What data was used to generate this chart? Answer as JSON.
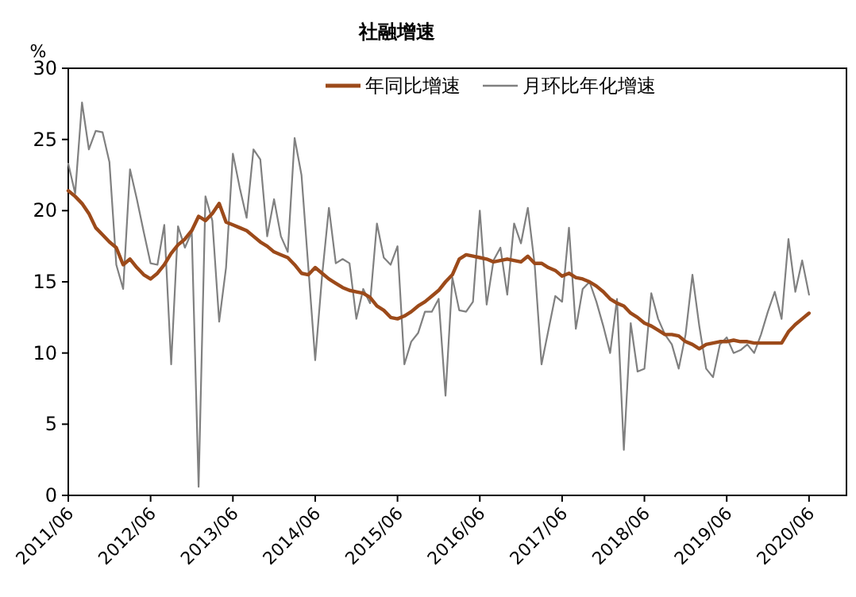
{
  "chart_data": {
    "type": "line",
    "title": "社融增速",
    "ylabel": "%",
    "legend": "top",
    "xlim": [
      "2011-06",
      "2020-11-15"
    ],
    "ylim": [
      0,
      30
    ],
    "yticks": [
      0,
      5,
      10,
      15,
      20,
      25,
      30
    ],
    "xticks": [
      {
        "value": "2011-06",
        "label": "2011/06"
      },
      {
        "value": "2012-06",
        "label": "2012/06"
      },
      {
        "value": "2013-06",
        "label": "2013/06"
      },
      {
        "value": "2014-06",
        "label": "2014/06"
      },
      {
        "value": "2015-06",
        "label": "2015/06"
      },
      {
        "value": "2016-06",
        "label": "2016/06"
      },
      {
        "value": "2017-06",
        "label": "2017/06"
      },
      {
        "value": "2018-06",
        "label": "2018/06"
      },
      {
        "value": "2019-06",
        "label": "2019/06"
      },
      {
        "value": "2020-06",
        "label": "2020/06"
      }
    ],
    "x": [
      "2011-06",
      "2011-07",
      "2011-08",
      "2011-09",
      "2011-10",
      "2011-11",
      "2011-12",
      "2012-01",
      "2012-02",
      "2012-03",
      "2012-04",
      "2012-05",
      "2012-06",
      "2012-07",
      "2012-08",
      "2012-09",
      "2012-10",
      "2012-11",
      "2012-12",
      "2013-01",
      "2013-02",
      "2013-03",
      "2013-04",
      "2013-05",
      "2013-06",
      "2013-07",
      "2013-08",
      "2013-09",
      "2013-10",
      "2013-11",
      "2013-12",
      "2014-01",
      "2014-02",
      "2014-03",
      "2014-04",
      "2014-05",
      "2014-06",
      "2014-07",
      "2014-08",
      "2014-09",
      "2014-10",
      "2014-11",
      "2014-12",
      "2015-01",
      "2015-02",
      "2015-03",
      "2015-04",
      "2015-05",
      "2015-06",
      "2015-07",
      "2015-08",
      "2015-09",
      "2015-10",
      "2015-11",
      "2015-12",
      "2016-01",
      "2016-02",
      "2016-03",
      "2016-04",
      "2016-05",
      "2016-06",
      "2016-07",
      "2016-08",
      "2016-09",
      "2016-10",
      "2016-11",
      "2016-12",
      "2017-01",
      "2017-02",
      "2017-03",
      "2017-04",
      "2017-05",
      "2017-06",
      "2017-07",
      "2017-08",
      "2017-09",
      "2017-10",
      "2017-11",
      "2017-12",
      "2018-01",
      "2018-02",
      "2018-03",
      "2018-04",
      "2018-05",
      "2018-06",
      "2018-07",
      "2018-08",
      "2018-09",
      "2018-10",
      "2018-11",
      "2018-12",
      "2019-01",
      "2019-02",
      "2019-03",
      "2019-04",
      "2019-05",
      "2019-06",
      "2019-07",
      "2019-08",
      "2019-09",
      "2019-10",
      "2019-11",
      "2019-12",
      "2020-01",
      "2020-02",
      "2020-03",
      "2020-04",
      "2020-05",
      "2020-06"
    ],
    "series": [
      {
        "name": "年同比增速",
        "color": "#9c4a1a",
        "values": [
          21.4,
          21.0,
          20.5,
          19.8,
          18.8,
          18.3,
          17.8,
          17.4,
          16.2,
          16.6,
          16.0,
          15.5,
          15.2,
          15.6,
          16.2,
          17.0,
          17.6,
          18.0,
          18.6,
          19.6,
          19.3,
          19.8,
          20.5,
          19.2,
          19.0,
          18.8,
          18.6,
          18.2,
          17.8,
          17.5,
          17.1,
          16.9,
          16.7,
          16.2,
          15.6,
          15.5,
          16.0,
          15.6,
          15.2,
          14.9,
          14.6,
          14.4,
          14.3,
          14.2,
          13.9,
          13.3,
          13.0,
          12.5,
          12.4,
          12.6,
          12.9,
          13.3,
          13.6,
          14.0,
          14.4,
          15.0,
          15.5,
          16.6,
          16.9,
          16.8,
          16.7,
          16.6,
          16.4,
          16.5,
          16.6,
          16.5,
          16.4,
          16.8,
          16.3,
          16.3,
          16.0,
          15.8,
          15.4,
          15.6,
          15.3,
          15.2,
          15.0,
          14.7,
          14.3,
          13.8,
          13.5,
          13.3,
          12.8,
          12.5,
          12.1,
          11.9,
          11.6,
          11.3,
          11.3,
          11.2,
          10.8,
          10.6,
          10.3,
          10.6,
          10.7,
          10.8,
          10.8,
          10.9,
          10.8,
          10.8,
          10.7,
          10.7,
          10.7,
          10.7,
          10.7,
          11.5,
          12.0,
          12.4,
          12.8
        ]
      },
      {
        "name": "月环比年化增速",
        "color": "#808080",
        "values": [
          23.3,
          21.2,
          27.6,
          24.3,
          25.6,
          25.5,
          23.4,
          16.2,
          14.5,
          22.9,
          20.8,
          18.5,
          16.3,
          16.2,
          19.0,
          9.2,
          18.9,
          17.4,
          18.5,
          0.6,
          21.0,
          19.3,
          12.2,
          16.0,
          24.0,
          21.6,
          19.5,
          24.3,
          23.6,
          18.2,
          20.8,
          18.2,
          17.1,
          25.1,
          22.5,
          16.0,
          9.5,
          15.4,
          20.2,
          16.3,
          16.6,
          16.3,
          12.4,
          14.5,
          13.5,
          19.1,
          16.7,
          16.2,
          17.5,
          9.2,
          10.8,
          11.4,
          12.9,
          12.9,
          13.8,
          7.0,
          15.3,
          13.0,
          12.9,
          13.6,
          20.0,
          13.4,
          16.5,
          17.4,
          14.1,
          19.1,
          17.7,
          20.2,
          16.2,
          9.2,
          11.6,
          14.0,
          13.6,
          18.8,
          11.7,
          14.5,
          15.0,
          13.6,
          11.9,
          10.0,
          13.8,
          3.2,
          12.1,
          8.7,
          8.9,
          14.2,
          12.4,
          11.3,
          10.6,
          8.9,
          11.3,
          15.5,
          11.9,
          8.9,
          8.3,
          10.6,
          11.1,
          10.0,
          10.2,
          10.6,
          10.0,
          11.3,
          12.9,
          14.3,
          12.4,
          18.0,
          14.3,
          16.5,
          14.1
        ]
      }
    ]
  }
}
